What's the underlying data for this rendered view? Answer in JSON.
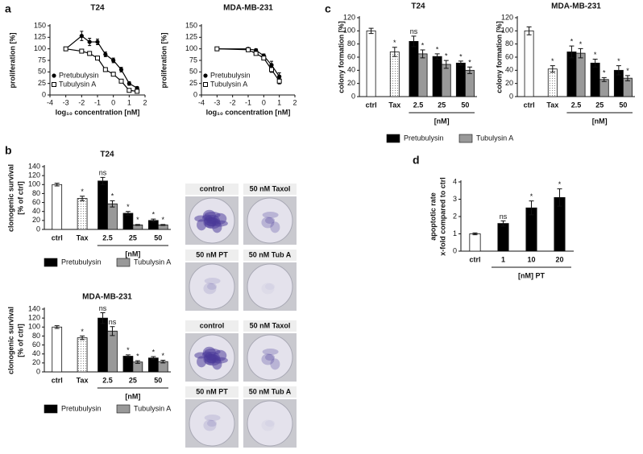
{
  "panel_labels": [
    "a",
    "b",
    "c",
    "d"
  ],
  "chart_data": [
    {
      "type": "scatter",
      "title": "T24",
      "xlabel": "log₁₀ concentration [nM]",
      "ylabel": "proliferation [%]",
      "xlim": [
        -4,
        2
      ],
      "xticks": [
        -4,
        -3,
        -2,
        -1,
        0,
        1,
        2
      ],
      "ylim": [
        0,
        150
      ],
      "yticks": [
        0,
        25,
        50,
        75,
        100,
        125,
        150
      ],
      "legend": "lower left",
      "series": [
        {
          "name": "Pretubulysin",
          "marker": "filled-circle",
          "color": "#000000",
          "x": [
            -3,
            -2,
            -1.5,
            -1,
            -0.5,
            0,
            0.5,
            1,
            1.5
          ],
          "values": [
            100,
            128,
            115,
            115,
            88,
            75,
            55,
            25,
            15
          ],
          "errors": [
            3,
            10,
            8,
            6,
            5,
            5,
            5,
            4,
            3
          ]
        },
        {
          "name": "Tubulysin A",
          "marker": "open-square",
          "color": "#000000",
          "x": [
            -3,
            -2,
            -1.5,
            -1,
            -0.5,
            0,
            0.5,
            1,
            1.5
          ],
          "values": [
            100,
            95,
            90,
            80,
            55,
            45,
            30,
            10,
            8
          ],
          "errors": [
            2,
            4,
            4,
            4,
            4,
            4,
            3,
            2,
            2
          ]
        }
      ]
    },
    {
      "type": "scatter",
      "title": "MDA-MB-231",
      "xlabel": "log₁₀ concentration [nM]",
      "ylabel": "proliferation [%]",
      "xlim": [
        -4,
        2
      ],
      "xticks": [
        -4,
        -3,
        -2,
        -1,
        0,
        1,
        2
      ],
      "ylim": [
        0,
        150
      ],
      "yticks": [
        0,
        25,
        50,
        75,
        100,
        125,
        150
      ],
      "legend": "lower left",
      "series": [
        {
          "name": "Pretubulysin",
          "marker": "filled-circle",
          "color": "#000000",
          "x": [
            -3,
            -1,
            -0.5,
            0,
            0.5,
            1
          ],
          "values": [
            100,
            100,
            97,
            85,
            65,
            40
          ],
          "errors": [
            2,
            2,
            3,
            4,
            8,
            8
          ]
        },
        {
          "name": "Tubulysin A",
          "marker": "open-square",
          "color": "#000000",
          "x": [
            -3,
            -1,
            -0.5,
            0,
            0.5,
            1
          ],
          "values": [
            100,
            98,
            90,
            80,
            55,
            30
          ],
          "errors": [
            2,
            2,
            3,
            4,
            6,
            6
          ]
        }
      ]
    },
    {
      "type": "bar",
      "title": "T24",
      "ylabel": [
        "clonogenic survival",
        "[% of ctrl]"
      ],
      "xlabel": "[nM]",
      "categories": [
        "ctrl",
        "Tax",
        "2.5",
        "25",
        "50"
      ],
      "values": [
        100,
        69,
        null,
        null,
        null
      ],
      "errors": [
        3,
        5,
        null,
        null,
        null
      ],
      "fills": [
        "#ffffff",
        "dotted",
        null,
        null,
        null
      ],
      "significance": [
        null,
        "*",
        null,
        null,
        null
      ],
      "ylim": [
        0,
        140
      ],
      "yticks": [
        0,
        20,
        40,
        60,
        80,
        100,
        120,
        140
      ],
      "legend": "below",
      "series": [
        {
          "name": "Pretubulysin",
          "color": "#000000",
          "values": [
            null,
            null,
            108,
            36,
            20
          ],
          "errors": [
            null,
            null,
            8,
            4,
            3
          ],
          "significance": [
            null,
            null,
            "ns",
            "*",
            "*"
          ]
        },
        {
          "name": "Tubulysin A",
          "color": "#999999",
          "values": [
            null,
            null,
            57,
            10,
            10
          ],
          "errors": [
            null,
            null,
            7,
            1,
            1
          ],
          "significance": [
            null,
            null,
            "*",
            "*",
            "*"
          ]
        }
      ]
    },
    {
      "type": "bar",
      "title": "MDA-MB-231",
      "ylabel": [
        "clonogenic survival",
        "[% of ctrl]"
      ],
      "xlabel": "[nM]",
      "categories": [
        "ctrl",
        "Tax",
        "2.5",
        "25",
        "50"
      ],
      "values": [
        100,
        76,
        null,
        null,
        null
      ],
      "errors": [
        3,
        4,
        null,
        null,
        null
      ],
      "fills": [
        "#ffffff",
        "dotted",
        null,
        null,
        null
      ],
      "significance": [
        null,
        "*",
        null,
        null,
        null
      ],
      "ylim": [
        0,
        140
      ],
      "yticks": [
        0,
        20,
        40,
        60,
        80,
        100,
        120,
        140
      ],
      "legend": "below",
      "series": [
        {
          "name": "Pretubulysin",
          "color": "#000000",
          "values": [
            null,
            null,
            120,
            35,
            31
          ],
          "errors": [
            null,
            null,
            12,
            3,
            3
          ],
          "significance": [
            null,
            null,
            "ns",
            "*",
            "*"
          ]
        },
        {
          "name": "Tubulysin A",
          "color": "#999999",
          "values": [
            null,
            null,
            91,
            22,
            23
          ],
          "errors": [
            null,
            null,
            10,
            3,
            3
          ],
          "significance": [
            null,
            null,
            "ns",
            "*",
            "*"
          ]
        }
      ]
    },
    {
      "type": "bar",
      "title": "T24",
      "ylabel": "colony formation [%]",
      "xlabel": "[nM]",
      "categories": [
        "ctrl",
        "Tax",
        "2.5",
        "25",
        "50"
      ],
      "values": [
        100,
        68,
        null,
        null,
        null
      ],
      "errors": [
        4,
        7,
        null,
        null,
        null
      ],
      "fills": [
        "#ffffff",
        "dotted",
        null,
        null,
        null
      ],
      "significance": [
        null,
        "*",
        null,
        null,
        null
      ],
      "ylim": [
        0,
        120
      ],
      "yticks": [
        0,
        20,
        40,
        60,
        80,
        100,
        120
      ],
      "legend": "below",
      "series": [
        {
          "name": "Pretubulysin",
          "color": "#000000",
          "values": [
            null,
            null,
            84,
            61,
            51
          ],
          "errors": [
            null,
            null,
            8,
            4,
            3
          ],
          "significance": [
            null,
            null,
            "ns",
            "*",
            "*"
          ]
        },
        {
          "name": "Tubulysin A",
          "color": "#999999",
          "values": [
            null,
            null,
            65,
            49,
            40
          ],
          "errors": [
            null,
            null,
            6,
            6,
            5
          ],
          "significance": [
            null,
            null,
            "*",
            "*",
            "*"
          ]
        }
      ]
    },
    {
      "type": "bar",
      "title": "MDA-MB-231",
      "ylabel": "colony formation [%]",
      "xlabel": "[nM]",
      "categories": [
        "ctrl",
        "Tax",
        "2.5",
        "25",
        "50"
      ],
      "values": [
        100,
        42,
        null,
        null,
        null
      ],
      "errors": [
        6,
        5,
        null,
        null,
        null
      ],
      "fills": [
        "#ffffff",
        "dotted",
        null,
        null,
        null
      ],
      "significance": [
        null,
        "*",
        null,
        null,
        null
      ],
      "ylim": [
        0,
        120
      ],
      "yticks": [
        0,
        20,
        40,
        60,
        80,
        100,
        120
      ],
      "series": [
        {
          "color": "#000000",
          "values": [
            null,
            null,
            68,
            51,
            40
          ],
          "errors": [
            null,
            null,
            9,
            6,
            7
          ],
          "significance": [
            null,
            null,
            "*",
            "*",
            "*"
          ]
        },
        {
          "color": "#999999",
          "values": [
            null,
            null,
            66,
            26,
            28
          ],
          "errors": [
            null,
            null,
            7,
            3,
            4
          ],
          "significance": [
            null,
            null,
            "*",
            "*",
            "*"
          ]
        }
      ]
    },
    {
      "type": "bar",
      "ylabel": [
        "apoptotic rate",
        "x-fold compared to ctrl"
      ],
      "xlabel": "[nM] PT",
      "categories": [
        "ctrl",
        "1",
        "10",
        "20"
      ],
      "values": [
        1,
        null,
        null,
        null
      ],
      "errors": [
        0.05,
        null,
        null,
        null
      ],
      "fills": [
        "#ffffff",
        null,
        null,
        null
      ],
      "ylim": [
        0,
        4
      ],
      "yticks": [
        0,
        1,
        2,
        3,
        4
      ],
      "series": [
        {
          "color": "#000000",
          "values": [
            null,
            1.6,
            2.5,
            3.1
          ],
          "errors": [
            null,
            0.15,
            0.4,
            0.5
          ],
          "significance": [
            null,
            "ns",
            "*",
            "*"
          ]
        }
      ]
    }
  ],
  "plates": [
    [
      "control",
      "50 nM Taxol",
      "50 nM PT",
      "50 nM Tub A"
    ],
    [
      "control",
      "50 nM Taxol",
      "50 nM PT",
      "50 nM Tub A"
    ]
  ]
}
